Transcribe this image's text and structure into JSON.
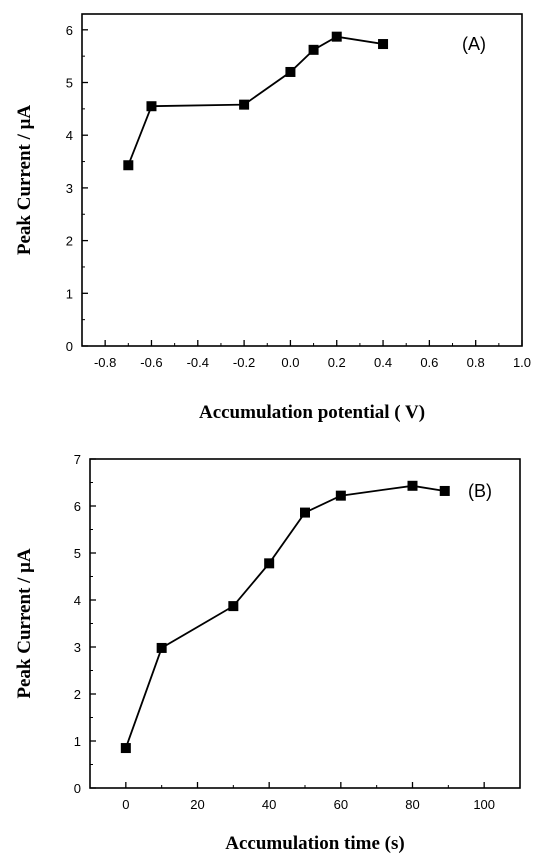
{
  "chart_data": [
    {
      "type": "line",
      "panel_label": "(A)",
      "xlabel": "Accumulation potential ( V)",
      "ylabel": "Peak Current / μA",
      "xlim": [
        -0.9,
        1.0
      ],
      "ylim": [
        0,
        6.3
      ],
      "xticks": [
        "-0.8",
        "-0.6",
        "-0.4",
        "-0.2",
        "0.0",
        "0.2",
        "0.4",
        "0.6",
        "0.8",
        "1.0"
      ],
      "yticks": [
        "0",
        "1",
        "2",
        "3",
        "4",
        "5",
        "6"
      ],
      "marker": "square",
      "grid": false,
      "series": [
        {
          "x": [
            -0.7,
            -0.6,
            -0.2,
            0.0,
            0.1,
            0.2,
            0.4
          ],
          "y": [
            3.43,
            4.55,
            4.58,
            5.2,
            5.62,
            5.87,
            5.73
          ]
        }
      ]
    },
    {
      "type": "line",
      "panel_label": "(B)",
      "xlabel": "Accumulation time (s)",
      "ylabel": "Peak Current / μA",
      "xlim": [
        -10,
        110
      ],
      "ylim": [
        0,
        7
      ],
      "xticks": [
        "0",
        "20",
        "40",
        "60",
        "80",
        "100"
      ],
      "yticks": [
        "0",
        "1",
        "2",
        "3",
        "4",
        "5",
        "6",
        "7"
      ],
      "marker": "square",
      "grid": false,
      "series": [
        {
          "x": [
            0,
            10,
            30,
            40,
            50,
            60,
            80,
            89
          ],
          "y": [
            0.85,
            2.98,
            3.87,
            4.78,
            5.86,
            6.22,
            6.43,
            6.32
          ]
        }
      ]
    }
  ]
}
